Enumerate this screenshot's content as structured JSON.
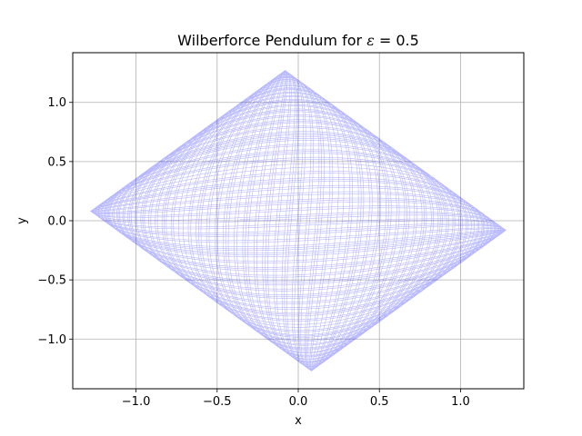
{
  "chart_data": {
    "type": "line",
    "title_prefix": "Wilberforce Pendulum for ",
    "title_symbol": "ε",
    "title_suffix": " = 0.5",
    "xlabel": "x",
    "ylabel": "y",
    "xlim": [
      -1.39,
      1.39
    ],
    "ylim": [
      -1.42,
      1.42
    ],
    "xticks": [
      -1.0,
      -0.5,
      0.0,
      0.5,
      1.0
    ],
    "xtick_labels": [
      "−1.0",
      "−0.5",
      "0.0",
      "0.5",
      "1.0"
    ],
    "yticks": [
      -1.0,
      -0.5,
      0.0,
      0.5,
      1.0
    ],
    "ytick_labels": [
      "−1.0",
      "−0.5",
      "0.0",
      "0.5",
      "1.0"
    ],
    "grid": true,
    "series": [
      {
        "color": "#0000ff",
        "model": "coupled-oscillator trajectory",
        "epsilon": 0.5,
        "t_range": [
          0,
          480
        ],
        "x_amplitude_max": 1.28,
        "y_amplitude_max": 1.27
      }
    ]
  }
}
